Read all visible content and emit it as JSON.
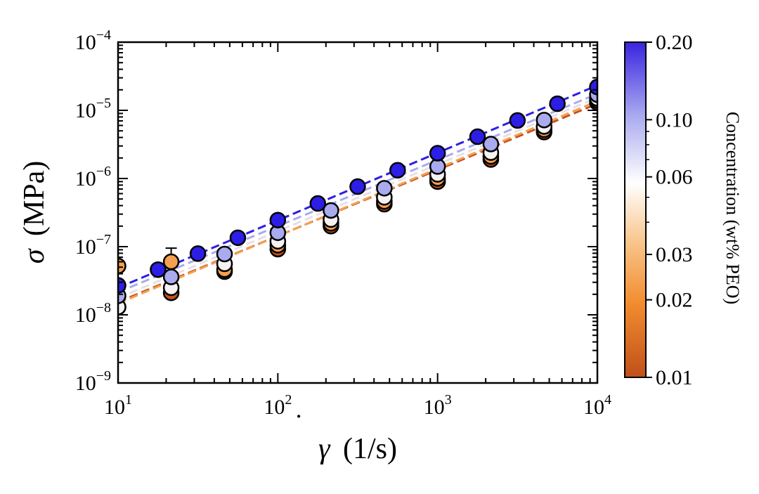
{
  "chart_data": {
    "type": "scatter",
    "xlabel": {
      "symbol": "γ",
      "unit": "(1/s)"
    },
    "ylabel": {
      "symbol": "σ",
      "unit": "(MPa)"
    },
    "xscale": "log",
    "yscale": "log",
    "xlim": [
      10,
      10000
    ],
    "ylim": [
      1e-09,
      0.0001
    ],
    "x_ticks": [
      {
        "base": "10",
        "exp": "1"
      },
      {
        "base": "10",
        "exp": "2"
      },
      {
        "base": "10",
        "exp": "3"
      },
      {
        "base": "10",
        "exp": "4"
      }
    ],
    "y_ticks": [
      {
        "base": "10",
        "exp": "−9"
      },
      {
        "base": "10",
        "exp": "−8"
      },
      {
        "base": "10",
        "exp": "−7"
      },
      {
        "base": "10",
        "exp": "−6"
      },
      {
        "base": "10",
        "exp": "−5"
      },
      {
        "base": "10",
        "exp": "−4"
      }
    ],
    "grid": false,
    "colorbar": {
      "label": "Concentration (wt% PEO)",
      "scale": "log",
      "range": [
        0.01,
        0.2
      ],
      "tick_values": [
        0.2,
        0.1,
        0.06,
        0.03,
        0.02,
        0.01
      ],
      "tick_labels": [
        "0.20",
        "0.10",
        "0.06",
        "0.03",
        "0.02",
        "0.01"
      ],
      "colors": [
        "#c0501a",
        "#f28c2e",
        "#f8c48a",
        "#ffffff",
        "#aaaaf0",
        "#3a24e0"
      ]
    },
    "series": [
      {
        "concentration": 0.01,
        "color": "#c5521d",
        "x": [
          10,
          21.5,
          46.4,
          100,
          215,
          464,
          1000,
          2154,
          4642,
          10000
        ],
        "y": [
          1.3e-08,
          2.1e-08,
          4.3e-08,
          9.2e-08,
          2e-07,
          4.2e-07,
          9e-07,
          1.9e-06,
          4.8e-06,
          1.3e-05
        ],
        "fit": {
          "a": 1.65e-09,
          "b": 0.97
        }
      },
      {
        "concentration": 0.02,
        "color": "#f5a050",
        "x": [
          10,
          21.5,
          46.4,
          100,
          215,
          464,
          1000,
          2154,
          4642,
          10000
        ],
        "y": [
          5.2e-08,
          6e-08,
          4.6e-08,
          1.05e-07,
          2.2e-07,
          4.6e-07,
          1e-06,
          2.1e-06,
          5.2e-06,
          1.4e-05
        ],
        "yerr": [
          null,
          3.5e-08,
          null,
          null,
          null,
          null,
          null,
          null,
          null,
          null
        ],
        "fit": {
          "a": 1.5e-09,
          "b": 0.99
        }
      },
      {
        "concentration": 0.03,
        "color": "#f6f2f2",
        "x": [
          10,
          21.5,
          46.4,
          100,
          215,
          464,
          1000,
          2154,
          4642,
          10000
        ],
        "y": [
          1.3e-08,
          2.5e-08,
          5.6e-08,
          1.2e-07,
          2.5e-07,
          5.3e-07,
          1.15e-06,
          2.4e-06,
          5.8e-06,
          1.5e-05
        ],
        "fit": {
          "a": 1.85e-09,
          "b": 0.98
        }
      },
      {
        "concentration": 0.1,
        "color": "#aaaaee",
        "x": [
          10,
          21.5,
          46.4,
          100,
          215,
          464,
          1000,
          2154,
          4642,
          10000
        ],
        "y": [
          1.9e-08,
          3.6e-08,
          7.8e-08,
          1.6e-07,
          3.4e-07,
          7.2e-07,
          1.5e-06,
          3.2e-06,
          7.2e-06,
          1.7e-05
        ],
        "fit": {
          "a": 2.3e-09,
          "b": 0.97
        }
      },
      {
        "concentration": 0.2,
        "color": "#2d1ee6",
        "x": [
          10,
          17.8,
          31.6,
          56.2,
          100,
          178,
          316,
          562,
          1000,
          1778,
          3162,
          5623,
          10000
        ],
        "y": [
          2.7e-08,
          4.6e-08,
          7.9e-08,
          1.35e-07,
          2.45e-07,
          4.3e-07,
          7.6e-07,
          1.32e-06,
          2.35e-06,
          4.1e-06,
          7.1e-06,
          1.25e-05,
          2.2e-05
        ],
        "fit": {
          "a": 2.55e-09,
          "b": 0.99
        }
      }
    ]
  }
}
